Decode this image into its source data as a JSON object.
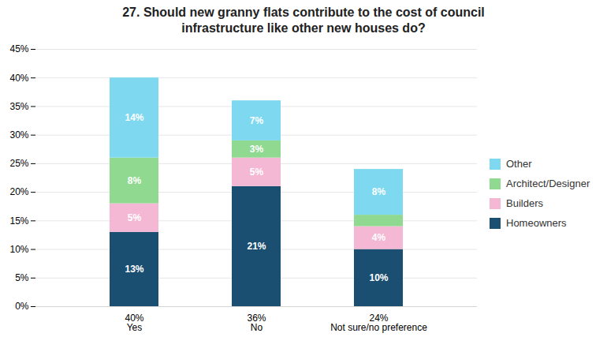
{
  "chart_data": {
    "type": "bar",
    "stacked": true,
    "title": "27. Should new granny flats contribute to the cost of council\ninfrastructure like other new houses do?",
    "categories": [
      "Yes",
      "No",
      "Not sure/no preference"
    ],
    "subtotals": [
      "40%",
      "36%",
      "24%"
    ],
    "series": [
      {
        "name": "Homeowners",
        "color": "#1b4f72",
        "values": [
          13,
          21,
          10
        ],
        "value_labels": [
          "13%",
          "21%",
          "10%"
        ]
      },
      {
        "name": "Builders",
        "color": "#f4b8d4",
        "values": [
          5,
          5,
          4
        ],
        "value_labels": [
          "5%",
          "5%",
          "4%"
        ]
      },
      {
        "name": "Architect/Designer",
        "color": "#90d990",
        "values": [
          8,
          3,
          2
        ],
        "value_labels": [
          "8%",
          "3%",
          null
        ]
      },
      {
        "name": "Other",
        "color": "#7dd8f0",
        "values": [
          14,
          7,
          8
        ],
        "value_labels": [
          "14%",
          "7%",
          "8%"
        ]
      }
    ],
    "ylim": [
      0,
      45
    ],
    "yticks": [
      {
        "value": 0,
        "label": "0%"
      },
      {
        "value": 5,
        "label": "5%"
      },
      {
        "value": 10,
        "label": "10%"
      },
      {
        "value": 15,
        "label": "15%"
      },
      {
        "value": 20,
        "label": "20%"
      },
      {
        "value": 25,
        "label": "25%"
      },
      {
        "value": 30,
        "label": "30%"
      },
      {
        "value": 35,
        "label": "35%"
      },
      {
        "value": 40,
        "label": "40%"
      },
      {
        "value": 45,
        "label": "45%"
      }
    ],
    "grid": true,
    "legend": "right",
    "data_labels": true
  }
}
